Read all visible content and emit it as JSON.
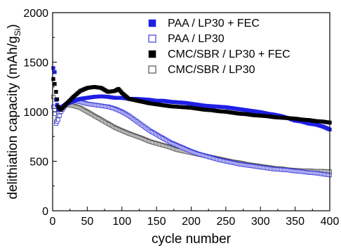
{
  "chart_data": {
    "type": "scatter",
    "title": "",
    "xlabel": "cycle number",
    "ylabel": "delithiation capacity (mAh/g",
    "ylabel_subscript": "Si",
    "ylabel_suffix": ")",
    "xlim": [
      0,
      400
    ],
    "ylim": [
      0,
      2000
    ],
    "xticks": [
      0,
      50,
      100,
      150,
      200,
      250,
      300,
      350,
      400
    ],
    "yticks": [
      0,
      500,
      1000,
      1500,
      2000
    ],
    "grid": false,
    "legend_position": "top-right",
    "series": [
      {
        "name": "PAA / LP30 + FEC",
        "marker": "filled-square",
        "color": "#1f1fe6",
        "points": [
          [
            1,
            1440
          ],
          [
            3,
            1400
          ],
          [
            5,
            1120
          ],
          [
            8,
            1020
          ],
          [
            12,
            1040
          ],
          [
            20,
            1080
          ],
          [
            30,
            1110
          ],
          [
            40,
            1130
          ],
          [
            50,
            1140
          ],
          [
            60,
            1150
          ],
          [
            70,
            1155
          ],
          [
            80,
            1150
          ],
          [
            90,
            1140
          ],
          [
            100,
            1140
          ],
          [
            110,
            1130
          ],
          [
            120,
            1130
          ],
          [
            130,
            1125
          ],
          [
            140,
            1120
          ],
          [
            150,
            1110
          ],
          [
            160,
            1110
          ],
          [
            170,
            1100
          ],
          [
            180,
            1095
          ],
          [
            190,
            1090
          ],
          [
            200,
            1080
          ],
          [
            210,
            1070
          ],
          [
            220,
            1060
          ],
          [
            230,
            1055
          ],
          [
            240,
            1050
          ],
          [
            250,
            1045
          ],
          [
            260,
            1035
          ],
          [
            270,
            1025
          ],
          [
            280,
            1015
          ],
          [
            290,
            1005
          ],
          [
            300,
            995
          ],
          [
            310,
            980
          ],
          [
            320,
            970
          ],
          [
            330,
            955
          ],
          [
            340,
            935
          ],
          [
            350,
            910
          ],
          [
            360,
            900
          ],
          [
            370,
            880
          ],
          [
            380,
            870
          ],
          [
            390,
            850
          ],
          [
            400,
            820
          ]
        ]
      },
      {
        "name": "PAA / LP30",
        "marker": "open-square",
        "color": "#3c3cdc",
        "points": [
          [
            1,
            1050
          ],
          [
            3,
            980
          ],
          [
            5,
            880
          ],
          [
            8,
            920
          ],
          [
            12,
            1000
          ],
          [
            20,
            1080
          ],
          [
            30,
            1110
          ],
          [
            40,
            1100
          ],
          [
            50,
            1080
          ],
          [
            60,
            1070
          ],
          [
            70,
            1060
          ],
          [
            80,
            1050
          ],
          [
            90,
            1030
          ],
          [
            100,
            1000
          ],
          [
            110,
            960
          ],
          [
            120,
            910
          ],
          [
            130,
            860
          ],
          [
            140,
            810
          ],
          [
            150,
            770
          ],
          [
            160,
            730
          ],
          [
            170,
            690
          ],
          [
            180,
            660
          ],
          [
            190,
            630
          ],
          [
            200,
            600
          ],
          [
            210,
            575
          ],
          [
            220,
            555
          ],
          [
            230,
            535
          ],
          [
            240,
            515
          ],
          [
            250,
            500
          ],
          [
            260,
            485
          ],
          [
            270,
            470
          ],
          [
            280,
            460
          ],
          [
            290,
            450
          ],
          [
            300,
            440
          ],
          [
            310,
            430
          ],
          [
            320,
            420
          ],
          [
            330,
            415
          ],
          [
            340,
            410
          ],
          [
            350,
            400
          ],
          [
            360,
            395
          ],
          [
            370,
            385
          ],
          [
            380,
            380
          ],
          [
            390,
            370
          ],
          [
            400,
            360
          ]
        ]
      },
      {
        "name": "CMC/SBR / LP30 + FEC",
        "marker": "filled-square",
        "color": "#000000",
        "points": [
          [
            1,
            1330
          ],
          [
            3,
            1280
          ],
          [
            5,
            1200
          ],
          [
            8,
            1050
          ],
          [
            12,
            1020
          ],
          [
            20,
            1080
          ],
          [
            30,
            1150
          ],
          [
            40,
            1210
          ],
          [
            50,
            1240
          ],
          [
            60,
            1250
          ],
          [
            70,
            1240
          ],
          [
            80,
            1200
          ],
          [
            90,
            1210
          ],
          [
            95,
            1230
          ],
          [
            100,
            1190
          ],
          [
            110,
            1130
          ],
          [
            120,
            1115
          ],
          [
            130,
            1100
          ],
          [
            140,
            1085
          ],
          [
            150,
            1075
          ],
          [
            160,
            1065
          ],
          [
            170,
            1055
          ],
          [
            180,
            1050
          ],
          [
            190,
            1045
          ],
          [
            200,
            1040
          ],
          [
            210,
            1030
          ],
          [
            220,
            1020
          ],
          [
            230,
            1015
          ],
          [
            240,
            1005
          ],
          [
            250,
            1000
          ],
          [
            260,
            990
          ],
          [
            270,
            980
          ],
          [
            280,
            975
          ],
          [
            290,
            965
          ],
          [
            300,
            960
          ],
          [
            310,
            955
          ],
          [
            320,
            945
          ],
          [
            330,
            940
          ],
          [
            340,
            935
          ],
          [
            350,
            930
          ],
          [
            360,
            920
          ],
          [
            370,
            915
          ],
          [
            380,
            905
          ],
          [
            390,
            900
          ],
          [
            400,
            890
          ]
        ]
      },
      {
        "name": "CMC/SBR / LP30",
        "marker": "open-square",
        "color": "#555555",
        "points": [
          [
            1,
            1150
          ],
          [
            3,
            1050
          ],
          [
            5,
            900
          ],
          [
            8,
            960
          ],
          [
            12,
            1030
          ],
          [
            20,
            1070
          ],
          [
            30,
            1060
          ],
          [
            40,
            1040
          ],
          [
            50,
            1000
          ],
          [
            60,
            960
          ],
          [
            70,
            920
          ],
          [
            80,
            880
          ],
          [
            90,
            840
          ],
          [
            100,
            810
          ],
          [
            110,
            780
          ],
          [
            120,
            755
          ],
          [
            130,
            730
          ],
          [
            140,
            700
          ],
          [
            150,
            680
          ],
          [
            160,
            660
          ],
          [
            170,
            640
          ],
          [
            180,
            615
          ],
          [
            190,
            600
          ],
          [
            200,
            585
          ],
          [
            210,
            570
          ],
          [
            220,
            555
          ],
          [
            230,
            540
          ],
          [
            240,
            525
          ],
          [
            250,
            510
          ],
          [
            260,
            495
          ],
          [
            270,
            485
          ],
          [
            280,
            470
          ],
          [
            290,
            460
          ],
          [
            300,
            450
          ],
          [
            310,
            440
          ],
          [
            320,
            430
          ],
          [
            330,
            425
          ],
          [
            340,
            415
          ],
          [
            350,
            410
          ],
          [
            360,
            405
          ],
          [
            370,
            405
          ],
          [
            380,
            400
          ],
          [
            390,
            400
          ],
          [
            400,
            395
          ]
        ]
      }
    ]
  }
}
